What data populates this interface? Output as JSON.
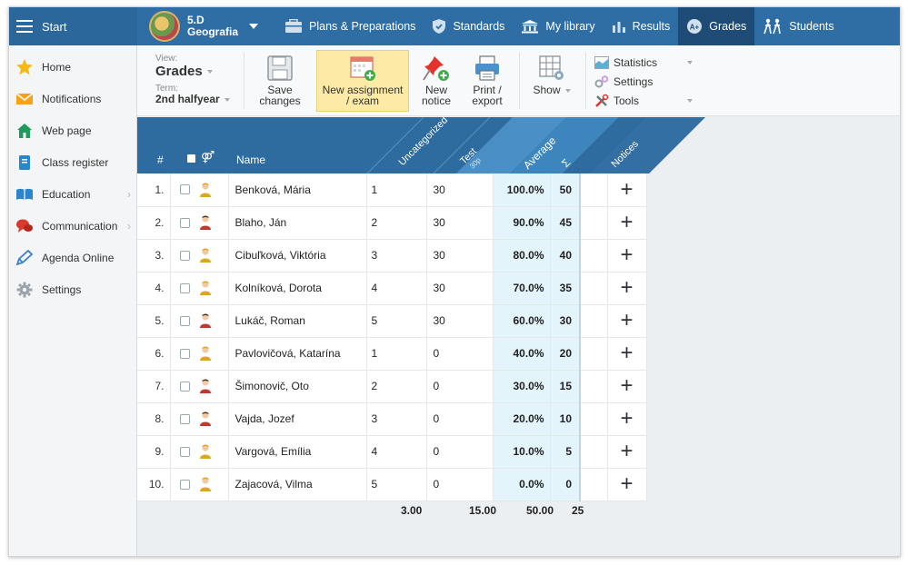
{
  "topbar": {
    "start_label": "Start",
    "class_name": "5.D",
    "class_subject": "Geografia",
    "nav": [
      {
        "label": "Plans & Preparations",
        "icon": "briefcase-icon"
      },
      {
        "label": "Standards",
        "icon": "shield-icon"
      },
      {
        "label": "My library",
        "icon": "library-icon"
      },
      {
        "label": "Results",
        "icon": "bar-chart-icon"
      },
      {
        "label": "Grades",
        "icon": "grades-icon",
        "active": true
      },
      {
        "label": "Students",
        "icon": "students-icon"
      }
    ]
  },
  "sidebar": {
    "items": [
      {
        "label": "Home",
        "icon": "star-icon"
      },
      {
        "label": "Notifications",
        "icon": "envelope-icon"
      },
      {
        "label": "Web page",
        "icon": "house-icon"
      },
      {
        "label": "Class register",
        "icon": "register-icon"
      },
      {
        "label": "Education",
        "icon": "education-icon",
        "has_submenu": true
      },
      {
        "label": "Communication",
        "icon": "chat-icon",
        "has_submenu": true
      },
      {
        "label": "Agenda Online",
        "icon": "pen-icon"
      },
      {
        "label": "Settings",
        "icon": "gear-icon"
      }
    ]
  },
  "toolbar": {
    "view_label": "View:",
    "view_value": "Grades",
    "term_label": "Term:",
    "term_value": "2nd halfyear",
    "save_label_1": "Save",
    "save_label_2": "changes",
    "new_assignment_1": "New assignment",
    "new_assignment_2": "/ exam",
    "new_notice_1": "New",
    "new_notice_2": "notice",
    "print_1": "Print /",
    "print_2": "export",
    "show_label": "Show",
    "statistics_label": "Statistics",
    "settings_label": "Settings",
    "tools_label": "Tools"
  },
  "grid": {
    "header": {
      "num": "#",
      "name": "Name",
      "uncategorized": "Uncategorized",
      "test": "Test",
      "test_max": "30p",
      "average": "Average",
      "sum": "Σ",
      "notices": "Notices"
    },
    "rows": [
      {
        "n": "1.",
        "name": "Benková, Mária",
        "unc": "1",
        "test": "30",
        "avg": "100.0%",
        "sum": "50",
        "gender": "f"
      },
      {
        "n": "2.",
        "name": "Blaho, Ján",
        "unc": "2",
        "test": "30",
        "avg": "90.0%",
        "sum": "45",
        "gender": "m"
      },
      {
        "n": "3.",
        "name": "Cibuľková, Viktória",
        "unc": "3",
        "test": "30",
        "avg": "80.0%",
        "sum": "40",
        "gender": "f"
      },
      {
        "n": "4.",
        "name": "Kolníková, Dorota",
        "unc": "4",
        "test": "30",
        "avg": "70.0%",
        "sum": "35",
        "gender": "f"
      },
      {
        "n": "5.",
        "name": "Lukáč, Roman",
        "unc": "5",
        "test": "30",
        "avg": "60.0%",
        "sum": "30",
        "gender": "m"
      },
      {
        "n": "6.",
        "name": "Pavlovičová, Katarína",
        "unc": "1",
        "test": "0",
        "avg": "40.0%",
        "sum": "20",
        "gender": "f"
      },
      {
        "n": "7.",
        "name": "Šimonovič, Oto",
        "unc": "2",
        "test": "0",
        "avg": "30.0%",
        "sum": "15",
        "gender": "m"
      },
      {
        "n": "8.",
        "name": "Vajda, Jozef",
        "unc": "3",
        "test": "0",
        "avg": "20.0%",
        "sum": "10",
        "gender": "m"
      },
      {
        "n": "9.",
        "name": "Vargová, Emília",
        "unc": "4",
        "test": "0",
        "avg": "10.0%",
        "sum": "5",
        "gender": "f"
      },
      {
        "n": "10.",
        "name": "Zajacová, Vilma",
        "unc": "5",
        "test": "0",
        "avg": "0.0%",
        "sum": "0",
        "gender": "f"
      }
    ],
    "totals": {
      "unc": "3.00",
      "test": "15.00",
      "avg": "50.00",
      "sum": "25"
    },
    "notice_add_symbol": "+"
  },
  "colors": {
    "topbar": "#2f6ea4",
    "header": "#2e6b9f",
    "header_highlight": "#3d86bd",
    "average_bg": "#e3f4fb",
    "new_assignment_bg": "#fdeaa7"
  }
}
